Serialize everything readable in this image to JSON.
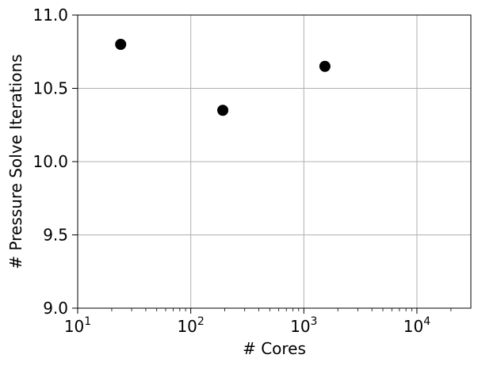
{
  "chart_data": {
    "type": "scatter",
    "title": "",
    "xlabel": "# Cores",
    "ylabel": "# Pressure Solve Iterations",
    "x_scale": "log",
    "xlim": [
      10,
      30000
    ],
    "ylim": [
      9.0,
      11.0
    ],
    "x_ticks": [
      {
        "value": 10,
        "base": "10",
        "exp": "1"
      },
      {
        "value": 100,
        "base": "10",
        "exp": "2"
      },
      {
        "value": 1000,
        "base": "10",
        "exp": "3"
      },
      {
        "value": 10000,
        "base": "10",
        "exp": "4"
      }
    ],
    "y_ticks": [
      {
        "value": 9.0,
        "label": "9.0"
      },
      {
        "value": 9.5,
        "label": "9.5"
      },
      {
        "value": 10.0,
        "label": "10.0"
      },
      {
        "value": 10.5,
        "label": "10.5"
      },
      {
        "value": 11.0,
        "label": "11.0"
      }
    ],
    "grid": true,
    "series": [
      {
        "color": "#000000",
        "points": [
          {
            "x": 24,
            "y": 10.8
          },
          {
            "x": 192,
            "y": 10.35
          },
          {
            "x": 1536,
            "y": 10.65
          }
        ]
      }
    ]
  }
}
